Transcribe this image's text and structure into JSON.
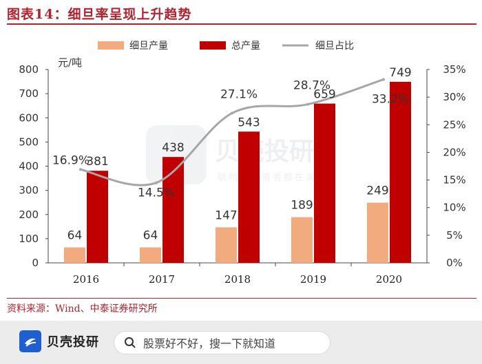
{
  "header": {
    "title": "图表14：细旦率呈现上升趋势"
  },
  "footer": {
    "source": "资料来源：Wind、中泰证券研究所"
  },
  "brand_bar": {
    "name": "贝壳投研",
    "search_placeholder": "股票好不好，搜一下就知道"
  },
  "watermark": {
    "name": "贝壳投研",
    "slogan": "聪明的投资者都在关注"
  },
  "colors": {
    "fine": "#f2aa7f",
    "total": "#c00000",
    "ratio_line": "#a6a6a6",
    "accent": "#b0222e"
  },
  "chart_data": {
    "type": "bar",
    "title": "图表14：细旦率呈现上升趋势",
    "categories": [
      "2016",
      "2017",
      "2018",
      "2019",
      "2020"
    ],
    "ylabel": "元/吨",
    "ylim": [
      0,
      800
    ],
    "yticks": [
      0,
      100,
      200,
      300,
      400,
      500,
      600,
      700,
      800
    ],
    "y2lim": [
      0,
      35
    ],
    "y2ticks": [
      "0%",
      "5%",
      "10%",
      "15%",
      "20%",
      "25%",
      "30%",
      "35%"
    ],
    "series": [
      {
        "name": "细旦产量",
        "kind": "bar",
        "values": [
          64,
          64,
          147,
          189,
          249
        ]
      },
      {
        "name": "总产量",
        "kind": "bar",
        "values": [
          381,
          438,
          543,
          659,
          749
        ]
      },
      {
        "name": "细旦占比",
        "kind": "line",
        "axis": "right",
        "values": [
          16.9,
          14.5,
          27.1,
          28.7,
          33.2
        ],
        "labels": [
          "16.9%",
          "14.5%",
          "27.1%",
          "28.7%",
          "33.2%"
        ]
      }
    ],
    "legend": "top"
  }
}
